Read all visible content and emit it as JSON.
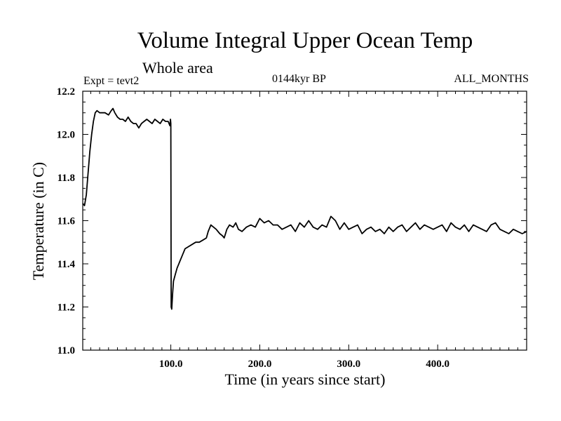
{
  "title": "Volume Integral Upper Ocean Temp",
  "subtitle": "Whole area",
  "expt": "Expt = tevt2",
  "period": "0144kyr BP",
  "months": "ALL_MONTHS",
  "chart_data": {
    "type": "line",
    "title": "Volume Integral Upper Ocean Temp",
    "xlabel": "Time (in years since start)",
    "ylabel": "Temperature (in C)",
    "xlim": [
      1,
      500
    ],
    "ylim": [
      11.0,
      12.2
    ],
    "xticks": [
      100,
      200,
      300,
      400
    ],
    "xtick_labels": [
      "100.0",
      "200.0",
      "300.0",
      "400.0"
    ],
    "yticks": [
      11.0,
      11.2,
      11.4,
      11.6,
      11.8,
      12.0,
      12.2
    ],
    "ytick_labels": [
      "11.0",
      "11.2",
      "11.4",
      "11.6",
      "11.8",
      "12.0",
      "12.2"
    ],
    "grid": false,
    "series": [
      {
        "name": "Temperature",
        "x": [
          1,
          3,
          5,
          7,
          9,
          11,
          13,
          15,
          17,
          20,
          23,
          26,
          30,
          33,
          35,
          37,
          40,
          43,
          46,
          49,
          52,
          55,
          58,
          61,
          64,
          67,
          70,
          73,
          76,
          79,
          82,
          85,
          88,
          91,
          94,
          97,
          99,
          99.6,
          100,
          100.4,
          101,
          102,
          103,
          105,
          107,
          110,
          113,
          116,
          120,
          124,
          128,
          132,
          136,
          140,
          142,
          145,
          148,
          151,
          155,
          158,
          160,
          163,
          166,
          170,
          173,
          176,
          180,
          185,
          190,
          195,
          200,
          205,
          210,
          215,
          220,
          225,
          230,
          235,
          240,
          245,
          250,
          255,
          260,
          265,
          270,
          275,
          280,
          285,
          290,
          295,
          300,
          305,
          310,
          315,
          320,
          325,
          330,
          335,
          340,
          345,
          350,
          355,
          360,
          365,
          370,
          375,
          380,
          385,
          390,
          395,
          400,
          405,
          410,
          415,
          420,
          425,
          430,
          435,
          440,
          445,
          450,
          455,
          460,
          465,
          470,
          475,
          480,
          485,
          490,
          495,
          500
        ],
        "y": [
          11.68,
          11.67,
          11.72,
          11.82,
          11.92,
          12.0,
          12.06,
          12.1,
          12.11,
          12.1,
          12.1,
          12.1,
          12.09,
          12.11,
          12.12,
          12.1,
          12.08,
          12.07,
          12.07,
          12.06,
          12.08,
          12.06,
          12.05,
          12.05,
          12.03,
          12.05,
          12.06,
          12.07,
          12.06,
          12.05,
          12.07,
          12.06,
          12.05,
          12.07,
          12.06,
          12.06,
          12.04,
          12.07,
          12.05,
          11.2,
          11.19,
          11.26,
          11.32,
          11.35,
          11.38,
          11.41,
          11.44,
          11.47,
          11.48,
          11.49,
          11.5,
          11.5,
          11.51,
          11.52,
          11.55,
          11.58,
          11.57,
          11.56,
          11.54,
          11.53,
          11.52,
          11.56,
          11.58,
          11.57,
          11.59,
          11.56,
          11.55,
          11.57,
          11.58,
          11.57,
          11.61,
          11.59,
          11.6,
          11.58,
          11.58,
          11.56,
          11.57,
          11.58,
          11.55,
          11.59,
          11.57,
          11.6,
          11.57,
          11.56,
          11.58,
          11.57,
          11.62,
          11.6,
          11.56,
          11.59,
          11.56,
          11.57,
          11.58,
          11.54,
          11.56,
          11.57,
          11.55,
          11.56,
          11.54,
          11.57,
          11.55,
          11.57,
          11.58,
          11.55,
          11.57,
          11.59,
          11.56,
          11.58,
          11.57,
          11.56,
          11.57,
          11.58,
          11.55,
          11.59,
          11.57,
          11.56,
          11.58,
          11.55,
          11.58,
          11.57,
          11.56,
          11.55,
          11.58,
          11.59,
          11.56,
          11.55,
          11.54,
          11.56,
          11.55,
          11.54,
          11.55
        ]
      }
    ]
  }
}
